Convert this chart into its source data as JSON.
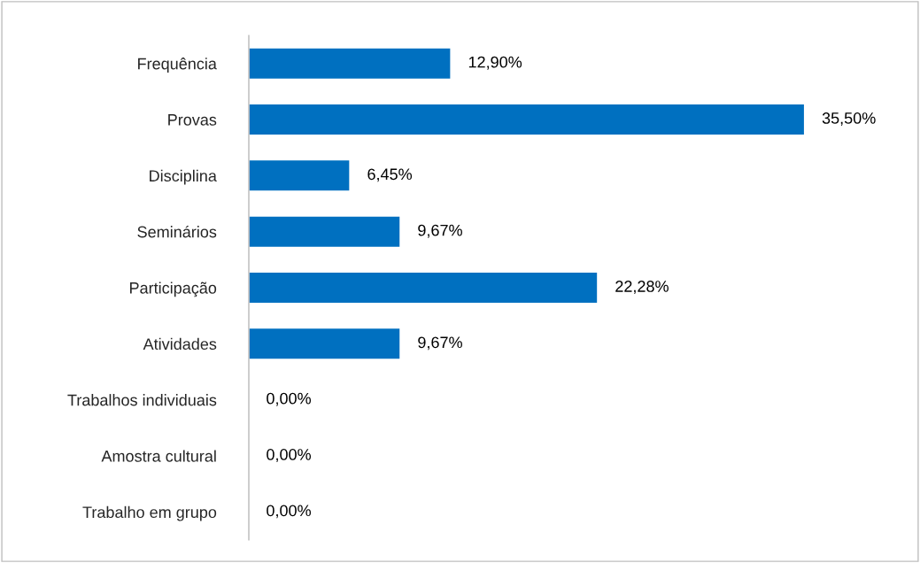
{
  "chart_data": {
    "type": "bar",
    "orientation": "horizontal",
    "categories": [
      "Frequência",
      "Provas",
      "Disciplina",
      "Seminários",
      "Participação",
      "Atividades",
      "Trabalhos individuais",
      "Amostra cultural",
      "Trabalho em grupo"
    ],
    "values": [
      12.9,
      35.5,
      6.45,
      9.67,
      22.28,
      9.67,
      0,
      0,
      0
    ],
    "value_labels": [
      "12,90%",
      "35,50%",
      "6,45%",
      "9,67%",
      "22,28%",
      "9,67%",
      "0,00%",
      "0,00%",
      "0,00%"
    ],
    "color": "#0070c0",
    "grid": false,
    "legend": false
  }
}
